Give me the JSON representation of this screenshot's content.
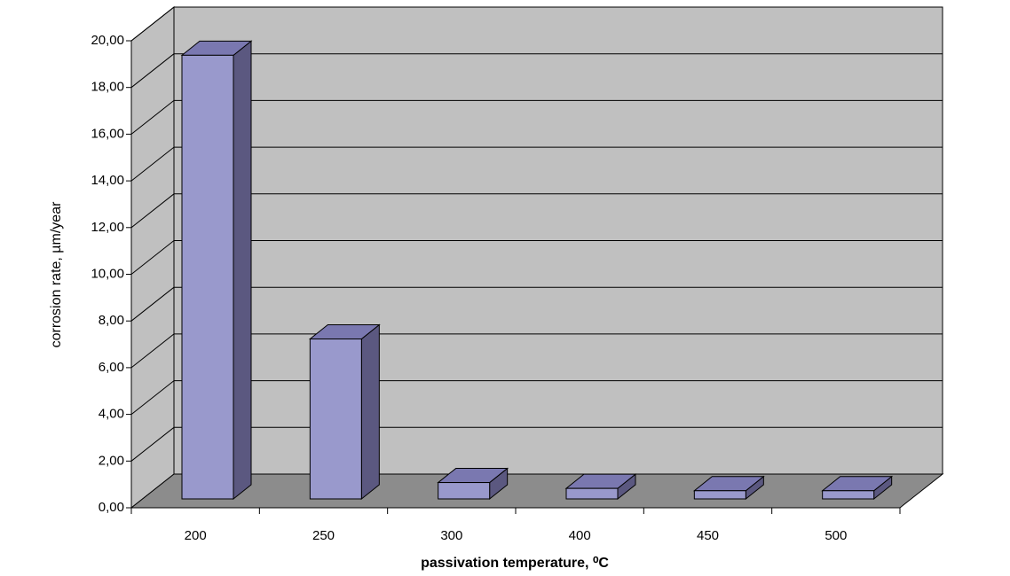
{
  "chart_data": {
    "type": "bar3d",
    "x_label": "passivation temperature, ⁰C",
    "y_label": "corrosion rate, µm/year",
    "categories": [
      "200",
      "250",
      "300",
      "400",
      "450",
      "500"
    ],
    "values": [
      19.0,
      6.85,
      0.7,
      0.45,
      0.35,
      0.35
    ],
    "color": "#9999cc",
    "ylim": [
      0,
      20
    ],
    "yticks": [
      {
        "value": 0,
        "label": "0,00"
      },
      {
        "value": 2,
        "label": "2,00"
      },
      {
        "value": 4,
        "label": "4,00"
      },
      {
        "value": 6,
        "label": "6,00"
      },
      {
        "value": 8,
        "label": "8,00"
      },
      {
        "value": 10,
        "label": "10,00"
      },
      {
        "value": 12,
        "label": "12,00"
      },
      {
        "value": 14,
        "label": "14,00"
      },
      {
        "value": 16,
        "label": "16,00"
      },
      {
        "value": 18,
        "label": "18,00"
      },
      {
        "value": 20,
        "label": "20,00"
      }
    ],
    "grid": true
  }
}
